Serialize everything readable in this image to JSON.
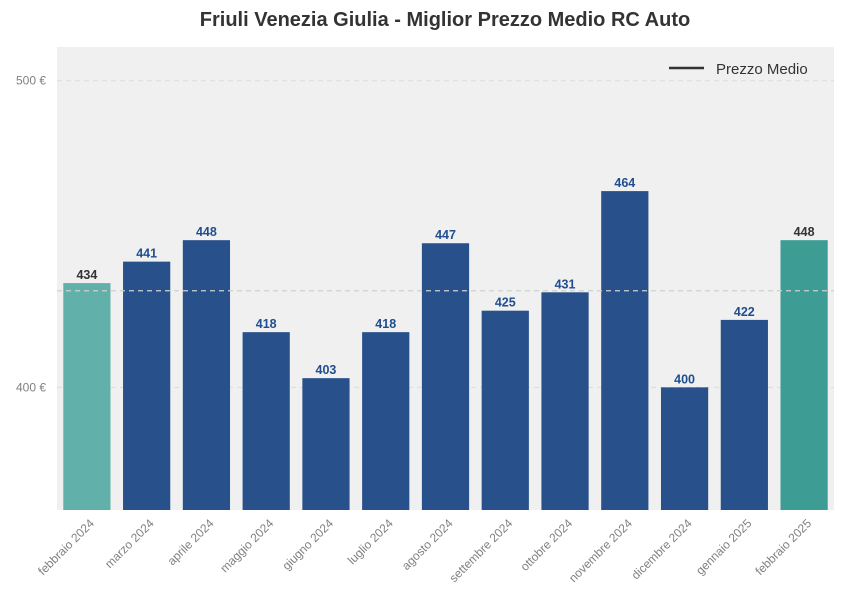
{
  "chart_data": {
    "type": "bar",
    "title": "Friuli Venezia Giulia - Miglior Prezzo Medio RC Auto",
    "categories": [
      "febbraio 2024",
      "marzo 2024",
      "aprile 2024",
      "maggio 2024",
      "giugno 2024",
      "luglio 2024",
      "agosto 2024",
      "settembre 2024",
      "ottobre 2024",
      "novembre 2024",
      "dicembre 2024",
      "gennaio 2025",
      "febbraio 2025"
    ],
    "values": [
      434,
      441,
      448,
      418,
      403,
      418,
      447,
      425,
      431,
      464,
      400,
      422,
      448
    ],
    "value_labels": [
      "434",
      "441",
      "448",
      "418",
      "403",
      "418",
      "447",
      "425",
      "431",
      "464",
      "400",
      "422",
      "448"
    ],
    "bar_colors": [
      "#62b0aa",
      "#28508a",
      "#28508a",
      "#28508a",
      "#28508a",
      "#28508a",
      "#28508a",
      "#28508a",
      "#28508a",
      "#28508a",
      "#28508a",
      "#28508a",
      "#3d9c94"
    ],
    "label_colors": [
      "#333333",
      "#1f4e8f",
      "#1f4e8f",
      "#1f4e8f",
      "#1f4e8f",
      "#1f4e8f",
      "#1f4e8f",
      "#1f4e8f",
      "#1f4e8f",
      "#1f4e8f",
      "#1f4e8f",
      "#1f4e8f",
      "#333333"
    ],
    "ylim": [
      360,
      511
    ],
    "yticks": [
      {
        "value": 400,
        "label": "400 €"
      },
      {
        "value": 500,
        "label": "500 €"
      }
    ],
    "reference_line": {
      "value": 431.5,
      "legend_label": "Prezzo Medio"
    },
    "xlabel": "",
    "ylabel": "",
    "grid": true,
    "legend_position": "top-right",
    "plot_background": "#f0f0f0"
  }
}
